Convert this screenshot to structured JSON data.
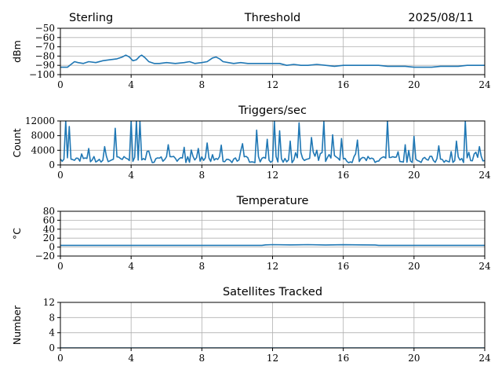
{
  "header": {
    "station": "Sterling",
    "date": "2025/08/11"
  },
  "chart_data": [
    {
      "type": "line",
      "title": "Threshold",
      "xlabel": "",
      "ylabel": "dBm",
      "xlim": [
        0,
        24
      ],
      "ylim": [
        -100,
        -50
      ],
      "xticks": [
        0,
        4,
        8,
        12,
        16,
        20,
        24
      ],
      "yticks": [
        -100,
        -90,
        -80,
        -70,
        -60,
        -50
      ],
      "ytick_labels": [
        "−100",
        "−90",
        "−80",
        "−70",
        "−60",
        "−50"
      ],
      "grid": true,
      "color": "#1f77b4",
      "series": [
        {
          "x": [
            0,
            0.4,
            0.6,
            0.8,
            1.0,
            1.3,
            1.6,
            2.0,
            2.4,
            2.8,
            3.2,
            3.5,
            3.7,
            3.9,
            4.1,
            4.3,
            4.5,
            4.6,
            4.8,
            5.0,
            5.3,
            5.6,
            6.0,
            6.5,
            7.0,
            7.3,
            7.6,
            8.0,
            8.3,
            8.6,
            8.8,
            9.0,
            9.2,
            9.5,
            9.8,
            10.2,
            10.6,
            11.0,
            11.5,
            12.0,
            12.4,
            12.8,
            13.2,
            13.6,
            14.0,
            14.5,
            15.0,
            15.5,
            16.0,
            16.5,
            17.0,
            17.5,
            18.0,
            18.5,
            19.0,
            19.5,
            20.0,
            20.5,
            21.0,
            21.5,
            22.0,
            22.5,
            23.0,
            23.5,
            24.0
          ],
          "y": [
            -92,
            -92,
            -89,
            -86,
            -87,
            -88,
            -86,
            -87,
            -85,
            -84,
            -83,
            -81,
            -79,
            -81,
            -85,
            -84,
            -80,
            -79,
            -82,
            -86,
            -88,
            -88,
            -87,
            -88,
            -87,
            -86,
            -88,
            -87,
            -86,
            -82,
            -81,
            -83,
            -86,
            -87,
            -88,
            -87,
            -88,
            -88,
            -88,
            -88,
            -88,
            -90,
            -89,
            -90,
            -90,
            -89,
            -90,
            -91,
            -90,
            -90,
            -90,
            -90,
            -90,
            -91,
            -91,
            -91,
            -92,
            -92,
            -92,
            -91,
            -91,
            -91,
            -90,
            -90,
            -90
          ]
        }
      ]
    },
    {
      "type": "line",
      "title": "Triggers/sec",
      "xlabel": "",
      "ylabel": "Count",
      "xlim": [
        0,
        24
      ],
      "ylim": [
        0,
        12000
      ],
      "xticks": [
        0,
        4,
        8,
        12,
        16,
        20,
        24
      ],
      "yticks": [
        0,
        4000,
        8000,
        12000
      ],
      "ytick_labels": [
        "0",
        "4000",
        "8000",
        "12000"
      ],
      "grid": true,
      "color": "#1f77b4",
      "baseline": {
        "x_step": 0.1,
        "min": 600,
        "max": 2400
      },
      "spikes": [
        {
          "x": 0.3,
          "y": 12000
        },
        {
          "x": 0.45,
          "y": 10500
        },
        {
          "x": 1.6,
          "y": 4500
        },
        {
          "x": 2.5,
          "y": 5000
        },
        {
          "x": 3.1,
          "y": 10000
        },
        {
          "x": 4.0,
          "y": 12000
        },
        {
          "x": 4.3,
          "y": 12000
        },
        {
          "x": 4.55,
          "y": 12000
        },
        {
          "x": 6.1,
          "y": 5500
        },
        {
          "x": 7.0,
          "y": 4800
        },
        {
          "x": 7.8,
          "y": 4500
        },
        {
          "x": 8.3,
          "y": 6000
        },
        {
          "x": 9.1,
          "y": 5400
        },
        {
          "x": 10.3,
          "y": 5800
        },
        {
          "x": 11.1,
          "y": 9500
        },
        {
          "x": 11.7,
          "y": 7000
        },
        {
          "x": 12.05,
          "y": 12000
        },
        {
          "x": 12.45,
          "y": 9300
        },
        {
          "x": 13.0,
          "y": 6500
        },
        {
          "x": 13.5,
          "y": 11500
        },
        {
          "x": 14.2,
          "y": 7500
        },
        {
          "x": 14.9,
          "y": 11800
        },
        {
          "x": 15.4,
          "y": 8200
        },
        {
          "x": 15.9,
          "y": 7200
        },
        {
          "x": 16.8,
          "y": 6800
        },
        {
          "x": 18.5,
          "y": 12000
        },
        {
          "x": 19.5,
          "y": 5500
        },
        {
          "x": 20.0,
          "y": 7800
        },
        {
          "x": 21.4,
          "y": 5200
        },
        {
          "x": 22.4,
          "y": 6500
        },
        {
          "x": 22.9,
          "y": 12000
        },
        {
          "x": 23.7,
          "y": 5000
        }
      ]
    },
    {
      "type": "line",
      "title": "Temperature",
      "xlabel": "",
      "ylabel": "°C",
      "xlim": [
        0,
        24
      ],
      "ylim": [
        -20,
        80
      ],
      "xticks": [
        0,
        4,
        8,
        12,
        16,
        20,
        24
      ],
      "yticks": [
        -20,
        0,
        20,
        40,
        60,
        80
      ],
      "ytick_labels": [
        "−20",
        "0",
        "20",
        "40",
        "60",
        "80"
      ],
      "grid": true,
      "color": "#1f77b4",
      "series": [
        {
          "x": [
            0,
            11.4,
            11.6,
            12.0,
            13.0,
            14.0,
            15.0,
            16.0,
            17.0,
            17.8,
            18.0,
            24.0
          ],
          "y": [
            3.8,
            3.8,
            5.0,
            5.4,
            5.0,
            5.4,
            4.8,
            5.2,
            5.0,
            4.8,
            3.8,
            3.8
          ]
        }
      ]
    },
    {
      "type": "line",
      "title": "Satellites Tracked",
      "xlabel": "",
      "ylabel": "Number",
      "xlim": [
        0,
        24
      ],
      "ylim": [
        0,
        12
      ],
      "xticks": [
        0,
        4,
        8,
        12,
        16,
        20,
        24
      ],
      "yticks": [
        0,
        4,
        8,
        12
      ],
      "ytick_labels": [
        "0",
        "4",
        "8",
        "12"
      ],
      "grid": true,
      "color": "#1f77b4",
      "series": [
        {
          "x": [
            0,
            24
          ],
          "y": [
            0,
            0
          ]
        }
      ]
    }
  ]
}
